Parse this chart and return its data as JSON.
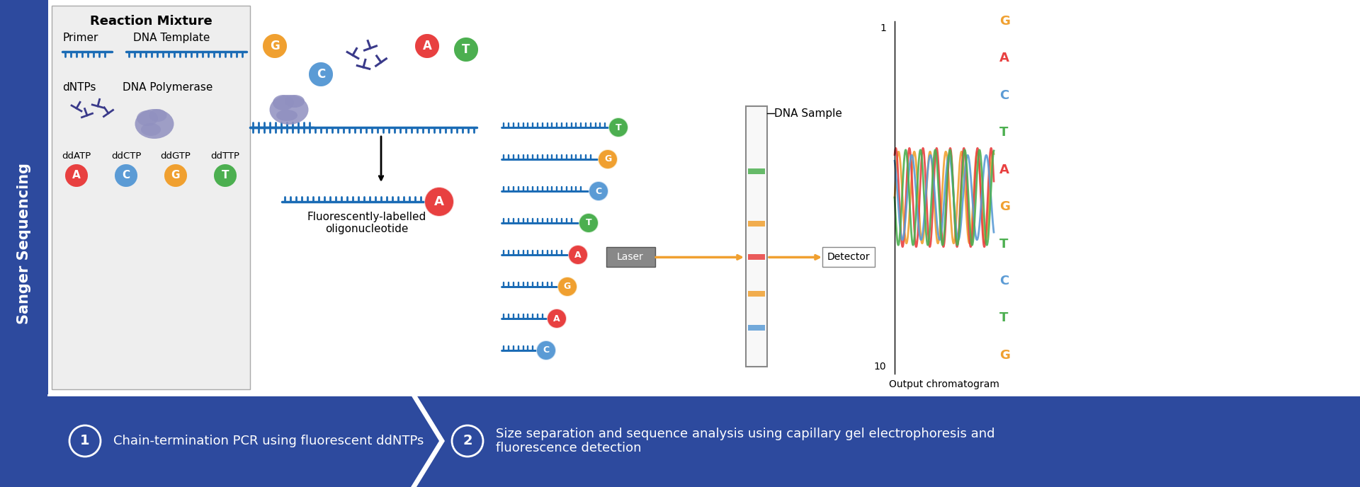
{
  "title": "Sanger Sequencing",
  "sidebar_color": "#2d4a9e",
  "sidebar_text": "Sanger Sequencing",
  "bg_color": "#ffffff",
  "panel_bg": "#f0f0f0",
  "bottom_bar_color": "#2d4a9e",
  "step1_text": "Chain-termination PCR using fluorescent ddNTPs",
  "step2_text": "Size separation and sequence analysis using capillary gel electrophoresis and\nfluorescence detection",
  "reaction_mixture_title": "Reaction Mixture",
  "primer_label": "Primer",
  "dna_template_label": "DNA Template",
  "dntps_label": "dNTPs",
  "dna_polymerase_label": "DNA Polymerase",
  "ddatp_label": "ddATP",
  "ddctp_label": "ddCTP",
  "ddgtp_label": "ddGTP",
  "ddttp_label": "ddTTP",
  "fluor_label": "Fluorescently-labelled\noligonucleotide",
  "dna_sample_label": "DNA Sample",
  "laser_label": "Laser",
  "detector_label": "Detector",
  "output_chromatogram_label": "Output chromatogram",
  "sequence_letters": [
    "G",
    "A",
    "C",
    "T",
    "A",
    "G",
    "T",
    "C",
    "T",
    "G"
  ],
  "color_A": "#e84040",
  "color_C": "#5b9bd5",
  "color_G": "#f0a030",
  "color_T": "#4caf50",
  "color_A_bg": "#f5c0c0",
  "color_C_bg": "#c0d8f0",
  "color_G_bg": "#f8e0b0",
  "color_T_bg": "#c0e8c0",
  "dna_color": "#1a6bb5",
  "primer_color": "#1a6bb5",
  "polymerase_color": "#9090c0",
  "arrow_color": "#333333",
  "nucleotide_scatter_color": "#3a3a8a"
}
